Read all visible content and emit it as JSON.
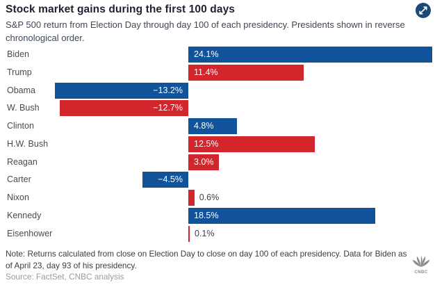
{
  "header": {
    "title": "Stock market gains during the first 100 days",
    "subtitle": "S&P 500 return from Election Day through day 100 of each presidency. Presidents shown in reverse chronological order."
  },
  "chart_data": {
    "type": "bar",
    "orientation": "horizontal",
    "unit": "percent",
    "title": "Stock market gains during the first 100 days",
    "categories": [
      "Biden",
      "Trump",
      "Obama",
      "W. Bush",
      "Clinton",
      "H.W. Bush",
      "Reagan",
      "Carter",
      "Nixon",
      "Kennedy",
      "Eisenhower"
    ],
    "values": [
      24.1,
      11.4,
      -13.2,
      -12.7,
      4.8,
      12.5,
      3.0,
      -4.5,
      0.6,
      18.5,
      0.1
    ],
    "value_labels": [
      "24.1%",
      "11.4%",
      "−13.2%",
      "−12.7%",
      "4.8%",
      "12.5%",
      "3.0%",
      "−4.5%",
      "0.6%",
      "18.5%",
      "0.1%"
    ],
    "parties": [
      "dem",
      "rep",
      "dem",
      "rep",
      "dem",
      "rep",
      "rep",
      "dem",
      "rep",
      "dem",
      "rep"
    ],
    "party_colors": {
      "dem": "#11539b",
      "rep": "#d3262c"
    },
    "xlim": [
      -14,
      24.5
    ],
    "grid": false,
    "legend": false,
    "value_label_style": "inside bars in white; tiny bars labeled outside in dark gray"
  },
  "footer": {
    "note": "Note: Returns calculated from close on Election Day to close on day 100 of each presidency. Data for Biden as of April 23, day 93 of his presidency.",
    "source": "Source: FactSet, CNBC analysis",
    "logo_text": "CNBC"
  },
  "icons": {
    "expand": "expand-icon",
    "logo": "cnbc-peacock-logo"
  },
  "colors": {
    "title": "#1c2230",
    "subtitle": "#3e4756",
    "category_label": "#4a4a4a",
    "expand_circle": "#1b4977",
    "note": "#373c41",
    "source": "#9a9a9a",
    "logo": "#8d8d8d",
    "background": "#ffffff"
  }
}
